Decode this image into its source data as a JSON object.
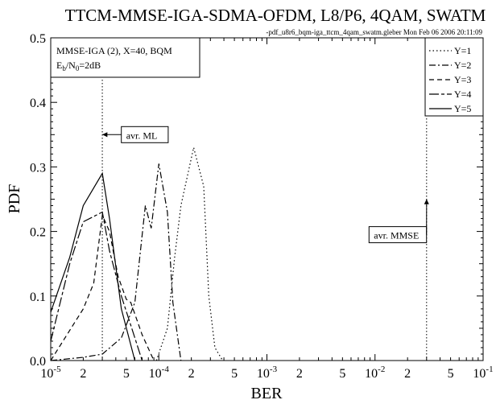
{
  "chart_data": {
    "type": "line",
    "title": "TTCM-MMSE-IGA-SDMA-OFDM, L8/P6, 4QAM, SWATM",
    "stamp": "-pdf_u8r6_bqm-iga_ttcm_4qam_swatm.gleber  Mon Feb 06 2006 20:11:09",
    "xlabel": "BER",
    "ylabel": "PDF",
    "xscale": "log",
    "xlim": [
      1e-05,
      0.1
    ],
    "ylim": [
      0.0,
      0.5
    ],
    "grid": false,
    "y_ticks": [
      "0.0",
      "0.1",
      "0.2",
      "0.3",
      "0.4",
      "0.5"
    ],
    "x_decade_labels": [
      {
        "x": 1e-05,
        "base": "10",
        "exp": "-5"
      },
      {
        "x": 0.0001,
        "base": "10",
        "exp": "-4"
      },
      {
        "x": 0.001,
        "base": "10",
        "exp": "-3"
      },
      {
        "x": 0.01,
        "base": "10",
        "exp": "-2"
      },
      {
        "x": 0.1,
        "base": "10",
        "exp": "-1"
      }
    ],
    "x_minor_labels": [
      {
        "x": 2e-05,
        "label": "2"
      },
      {
        "x": 5e-05,
        "label": "5"
      },
      {
        "x": 0.0002,
        "label": "2"
      },
      {
        "x": 0.0005,
        "label": "5"
      },
      {
        "x": 0.002,
        "label": "2"
      },
      {
        "x": 0.005,
        "label": "5"
      },
      {
        "x": 0.02,
        "label": "2"
      },
      {
        "x": 0.05,
        "label": "5"
      }
    ],
    "info_box": {
      "line1": "MMSE-IGA (2), X=40, BQM",
      "line2_prefix": "E",
      "line2_sub1": "b",
      "line2_mid": "/N",
      "line2_sub2": "0",
      "line2_suffix": "=2dB"
    },
    "legend_position": "top-right",
    "series": [
      {
        "name": "Y=1",
        "dash": "1.5,3",
        "points": [
          [
            9.5e-05,
            0.0
          ],
          [
            0.00012,
            0.05
          ],
          [
            0.00014,
            0.16
          ],
          [
            0.00016,
            0.24
          ],
          [
            0.00021,
            0.33
          ],
          [
            0.00026,
            0.27
          ],
          [
            0.00029,
            0.1
          ],
          [
            0.00033,
            0.02
          ],
          [
            0.00039,
            0.0
          ]
        ]
      },
      {
        "name": "Y=2",
        "dash": "8,3,2,3",
        "points": [
          [
            1e-05,
            0.0
          ],
          [
            2e-05,
            0.005
          ],
          [
            3e-05,
            0.01
          ],
          [
            4.5e-05,
            0.035
          ],
          [
            6e-05,
            0.09
          ],
          [
            7.5e-05,
            0.24
          ],
          [
            8.5e-05,
            0.205
          ],
          [
            0.0001,
            0.305
          ],
          [
            0.00012,
            0.23
          ],
          [
            0.000135,
            0.09
          ],
          [
            0.00016,
            0.0
          ]
        ]
      },
      {
        "name": "Y=3",
        "dash": "6,4",
        "points": [
          [
            1e-05,
            0.0
          ],
          [
            2e-05,
            0.08
          ],
          [
            2.5e-05,
            0.12
          ],
          [
            3e-05,
            0.225
          ],
          [
            3.5e-05,
            0.2
          ],
          [
            4.2e-05,
            0.13
          ],
          [
            5e-05,
            0.095
          ],
          [
            5.5e-05,
            0.09
          ],
          [
            7e-05,
            0.04
          ],
          [
            9e-05,
            0.0
          ]
        ]
      },
      {
        "name": "Y=4",
        "dash": "12,3,4,3",
        "points": [
          [
            1e-05,
            0.03
          ],
          [
            1.5e-05,
            0.15
          ],
          [
            2e-05,
            0.215
          ],
          [
            3e-05,
            0.23
          ],
          [
            3.5e-05,
            0.17
          ],
          [
            4.5e-05,
            0.1
          ],
          [
            6e-05,
            0.035
          ],
          [
            7e-05,
            0.0
          ]
        ]
      },
      {
        "name": "Y=5",
        "dash": "",
        "points": [
          [
            1e-05,
            0.075
          ],
          [
            1.5e-05,
            0.16
          ],
          [
            2e-05,
            0.24
          ],
          [
            3e-05,
            0.29
          ],
          [
            3.5e-05,
            0.22
          ],
          [
            4.5e-05,
            0.08
          ],
          [
            6e-05,
            0.0
          ]
        ]
      }
    ],
    "annotations": [
      {
        "text": "avr. ML",
        "x_line": 3e-05,
        "label_x": 4.5e-05,
        "label_y": 0.35,
        "arrow_y": 0.35
      },
      {
        "text": "avr. MMSE",
        "x_line": 0.03,
        "label_x": 0.0088,
        "label_y": 0.195,
        "arrow_y": 0.25
      }
    ]
  }
}
